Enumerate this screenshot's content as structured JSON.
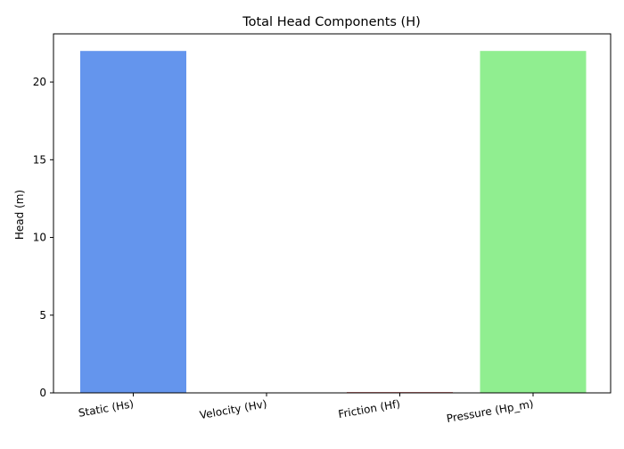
{
  "chart_data": {
    "type": "bar",
    "title": "Total Head Components (H)",
    "xlabel": "",
    "ylabel": "Head (m)",
    "categories": [
      "Static (Hs)",
      "Velocity (Hv)",
      "Friction (Hf)",
      "Pressure (Hp_m)"
    ],
    "values": [
      22.0,
      0.0,
      0.05,
      22.0
    ],
    "colors": [
      "#6495ed",
      "#ffa500",
      "#cd5c5c",
      "#90ee90"
    ],
    "ylim": [
      0,
      23.1
    ],
    "yticks": [
      0,
      5,
      10,
      15,
      20
    ],
    "grid": false,
    "legend": "none"
  }
}
